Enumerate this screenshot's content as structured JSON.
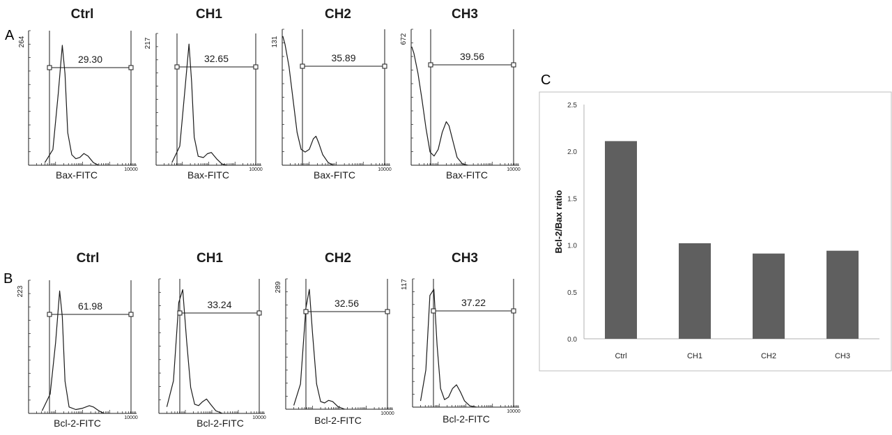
{
  "panels": {
    "A": "A",
    "B": "B",
    "C": "C"
  },
  "colors": {
    "histogram_line": "#1a1a1a",
    "bar_fill": "#5f5f5f",
    "bar_frame": "#bdbdbd"
  },
  "chart_data": [
    {
      "type": "histogram",
      "panel": "A",
      "title": "Ctrl",
      "xlabel": "Bax-FITC",
      "y_max_label": "264",
      "x_max_label": "10000",
      "gate_value": "29.30",
      "curve": [
        [
          0.6,
          0.02
        ],
        [
          0.9,
          0.12
        ],
        [
          1.1,
          0.55
        ],
        [
          1.25,
          0.92
        ],
        [
          1.35,
          0.7
        ],
        [
          1.45,
          0.25
        ],
        [
          1.6,
          0.08
        ],
        [
          1.75,
          0.05
        ],
        [
          1.9,
          0.06
        ],
        [
          2.05,
          0.09
        ],
        [
          2.2,
          0.07
        ],
        [
          2.4,
          0.02
        ],
        [
          2.6,
          0.0
        ]
      ]
    },
    {
      "type": "histogram",
      "panel": "A",
      "title": "CH1",
      "xlabel": "Bax-FITC",
      "y_max_label": "217",
      "x_max_label": "10000",
      "gate_value": "32.65",
      "curve": [
        [
          0.6,
          0.02
        ],
        [
          0.9,
          0.15
        ],
        [
          1.1,
          0.6
        ],
        [
          1.25,
          0.95
        ],
        [
          1.35,
          0.65
        ],
        [
          1.45,
          0.22
        ],
        [
          1.6,
          0.07
        ],
        [
          1.8,
          0.06
        ],
        [
          1.95,
          0.09
        ],
        [
          2.1,
          0.1
        ],
        [
          2.3,
          0.05
        ],
        [
          2.5,
          0.01
        ],
        [
          2.7,
          0.0
        ]
      ]
    },
    {
      "type": "histogram",
      "panel": "A",
      "title": "CH2",
      "xlabel": "Bax-FITC",
      "y_max_label": "131",
      "x_max_label": "10000",
      "gate_value": "35.89",
      "curve": [
        [
          0.02,
          0.98
        ],
        [
          0.1,
          0.92
        ],
        [
          0.25,
          0.75
        ],
        [
          0.4,
          0.5
        ],
        [
          0.55,
          0.25
        ],
        [
          0.7,
          0.12
        ],
        [
          0.85,
          0.1
        ],
        [
          1.0,
          0.12
        ],
        [
          1.15,
          0.2
        ],
        [
          1.25,
          0.22
        ],
        [
          1.35,
          0.17
        ],
        [
          1.5,
          0.08
        ],
        [
          1.7,
          0.02
        ],
        [
          1.9,
          0.0
        ]
      ]
    },
    {
      "type": "histogram",
      "panel": "A",
      "title": "CH3",
      "xlabel": "Bax-FITC",
      "y_max_label": "672",
      "x_max_label": "10000",
      "gate_value": "39.56",
      "curve": [
        [
          0.02,
          0.9
        ],
        [
          0.1,
          0.85
        ],
        [
          0.25,
          0.7
        ],
        [
          0.4,
          0.5
        ],
        [
          0.55,
          0.28
        ],
        [
          0.7,
          0.1
        ],
        [
          0.85,
          0.07
        ],
        [
          1.0,
          0.12
        ],
        [
          1.15,
          0.25
        ],
        [
          1.3,
          0.33
        ],
        [
          1.4,
          0.3
        ],
        [
          1.55,
          0.18
        ],
        [
          1.7,
          0.06
        ],
        [
          1.9,
          0.01
        ],
        [
          2.1,
          0.0
        ]
      ]
    },
    {
      "type": "histogram",
      "panel": "B",
      "title": "Ctrl",
      "xlabel": "Bcl-2-FITC",
      "y_max_label": "223",
      "x_max_label": "10000",
      "gate_value": "61.98",
      "curve": [
        [
          0.5,
          0.02
        ],
        [
          0.8,
          0.15
        ],
        [
          1.0,
          0.55
        ],
        [
          1.15,
          0.95
        ],
        [
          1.25,
          0.75
        ],
        [
          1.35,
          0.25
        ],
        [
          1.5,
          0.05
        ],
        [
          1.75,
          0.03
        ],
        [
          2.0,
          0.04
        ],
        [
          2.25,
          0.06
        ],
        [
          2.4,
          0.05
        ],
        [
          2.6,
          0.02
        ],
        [
          2.8,
          0.0
        ]
      ]
    },
    {
      "type": "histogram",
      "panel": "B",
      "title": "CH1",
      "xlabel": "Bcl-2-FITC",
      "y_max_label": "",
      "x_max_label": "10000",
      "gate_value": "33.24",
      "curve": [
        [
          0.3,
          0.05
        ],
        [
          0.55,
          0.25
        ],
        [
          0.75,
          0.85
        ],
        [
          0.9,
          0.95
        ],
        [
          1.05,
          0.55
        ],
        [
          1.2,
          0.2
        ],
        [
          1.35,
          0.07
        ],
        [
          1.5,
          0.06
        ],
        [
          1.65,
          0.09
        ],
        [
          1.8,
          0.11
        ],
        [
          1.95,
          0.07
        ],
        [
          2.15,
          0.02
        ],
        [
          2.4,
          0.0
        ]
      ]
    },
    {
      "type": "histogram",
      "panel": "B",
      "title": "CH2",
      "xlabel": "Bcl-2-FITC",
      "y_max_label": "289",
      "x_max_label": "10000",
      "gate_value": "32.56",
      "curve": [
        [
          0.3,
          0.03
        ],
        [
          0.55,
          0.2
        ],
        [
          0.75,
          0.8
        ],
        [
          0.88,
          0.95
        ],
        [
          1.0,
          0.6
        ],
        [
          1.15,
          0.2
        ],
        [
          1.3,
          0.06
        ],
        [
          1.45,
          0.05
        ],
        [
          1.6,
          0.07
        ],
        [
          1.75,
          0.06
        ],
        [
          1.95,
          0.02
        ],
        [
          2.2,
          0.0
        ]
      ]
    },
    {
      "type": "histogram",
      "panel": "B",
      "title": "CH3",
      "xlabel": "Bcl-2-FITC",
      "y_max_label": "117",
      "x_max_label": "10000",
      "gate_value": "37.22",
      "curve": [
        [
          0.3,
          0.05
        ],
        [
          0.5,
          0.3
        ],
        [
          0.65,
          0.9
        ],
        [
          0.8,
          0.95
        ],
        [
          0.92,
          0.5
        ],
        [
          1.05,
          0.15
        ],
        [
          1.2,
          0.06
        ],
        [
          1.35,
          0.08
        ],
        [
          1.5,
          0.15
        ],
        [
          1.65,
          0.18
        ],
        [
          1.8,
          0.12
        ],
        [
          1.95,
          0.05
        ],
        [
          2.15,
          0.01
        ],
        [
          2.4,
          0.0
        ]
      ]
    },
    {
      "type": "bar",
      "panel": "C",
      "title": "",
      "xlabel": "",
      "ylabel": "Bcl-2/Bax ratio",
      "categories": [
        "Ctrl",
        "CH1",
        "CH2",
        "CH3"
      ],
      "values": [
        2.11,
        1.02,
        0.91,
        0.94
      ],
      "ylim": [
        0,
        2.5
      ],
      "yticks": [
        "0.0",
        "0.5",
        "1.0",
        "1.5",
        "2.0",
        "2.5"
      ],
      "grid": false,
      "legend": "none"
    }
  ]
}
